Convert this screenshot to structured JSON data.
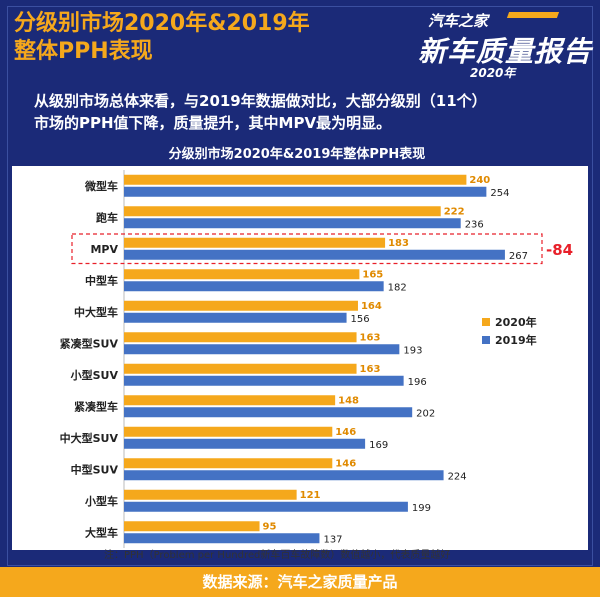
{
  "header": {
    "title_line1": "分级别市场2020年&2019年",
    "title_line2": "整体PPH表现",
    "logo_top": "汽车之家",
    "logo_main": "新车质量报告",
    "logo_year": "2020年"
  },
  "description": {
    "line1": "从级别市场总体来看，与2019年数据做对比，大部分级别（11个）",
    "line2": "市场的PPH值下降，质量提升，其中MPV最为明显。"
  },
  "chart_data": {
    "type": "bar",
    "orientation": "horizontal",
    "title": "分级别市场2020年&2019年整体PPH表现",
    "categories": [
      "微型车",
      "跑车",
      "MPV",
      "中型车",
      "中大型车",
      "紧凑型SUV",
      "小型SUV",
      "紧凑型车",
      "中大型SUV",
      "中型SUV",
      "小型车",
      "大型车"
    ],
    "series": [
      {
        "name": "2020年",
        "color": "#f5a81c",
        "values": [
          240,
          222,
          183,
          165,
          164,
          163,
          163,
          148,
          146,
          146,
          121,
          95
        ]
      },
      {
        "name": "2019年",
        "color": "#4472c4",
        "values": [
          254,
          236,
          267,
          182,
          156,
          193,
          196,
          202,
          169,
          224,
          199,
          137
        ]
      }
    ],
    "highlight": {
      "category": "MPV",
      "annotation": "-84",
      "color": "#e8202a"
    },
    "legend_position": "right",
    "xlim": [
      0,
      300
    ],
    "grid": false
  },
  "note": "注：PPH（Problem per Hundred新车百车故障数）数值越小，代表质量越好",
  "footer": "数据来源：汽车之家质量产品"
}
